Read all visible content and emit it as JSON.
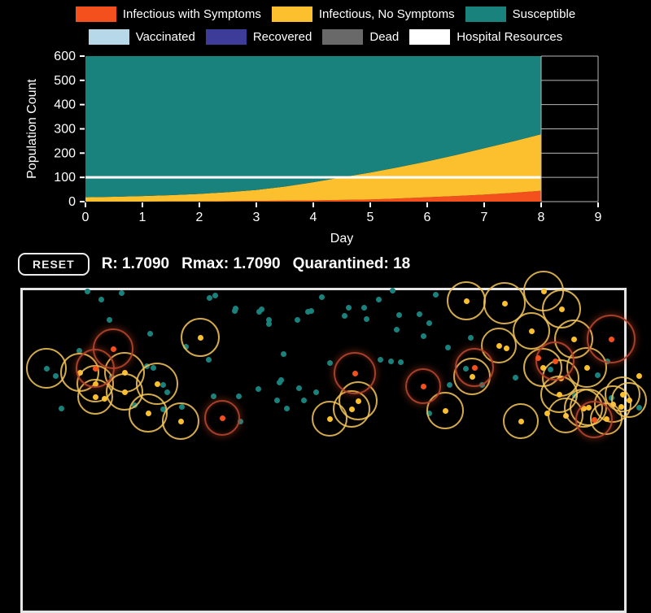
{
  "colors": {
    "infectious_symptoms": "#f4501e",
    "infectious_no_symptoms": "#fcc02e",
    "susceptible": "#1a827d",
    "vaccinated": "#b6d8e8",
    "recovered": "#3d3d99",
    "dead": "#696969",
    "hospital": "#ffffff",
    "ring_infectious": "rgba(247,200,88,0.85)",
    "ring_symptomatic": "rgba(176,66,44,0.95)",
    "grid": "#b7b7b7",
    "axis_text": "#ffffff"
  },
  "legend": {
    "rows": [
      [
        {
          "label": "Infectious with Symptoms",
          "color": "infectious_symptoms"
        },
        {
          "label": "Infectious, No Symptoms",
          "color": "infectious_no_symptoms"
        },
        {
          "label": "Susceptible",
          "color": "susceptible"
        }
      ],
      [
        {
          "label": "Vaccinated",
          "color": "vaccinated"
        },
        {
          "label": "Recovered",
          "color": "recovered"
        },
        {
          "label": "Dead",
          "color": "dead"
        },
        {
          "label": "Hospital Resources",
          "color": "hospital"
        }
      ]
    ]
  },
  "chart_data": {
    "type": "area",
    "stacked": true,
    "title": "",
    "xlabel": "Day",
    "ylabel": "Population Count",
    "xlim": [
      0,
      9
    ],
    "ylim": [
      0,
      600
    ],
    "xticks": [
      0,
      1,
      2,
      3,
      4,
      5,
      6,
      7,
      8,
      9
    ],
    "yticks": [
      0,
      100,
      200,
      300,
      400,
      500,
      600
    ],
    "x": [
      0,
      0.5,
      1,
      1.5,
      2,
      2.5,
      3,
      3.5,
      4,
      4.5,
      5,
      5.5,
      6,
      6.5,
      7,
      7.5,
      8
    ],
    "series": [
      {
        "name": "Infectious with Symptoms",
        "color": "infectious_symptoms",
        "values": [
          0,
          0,
          0,
          1,
          1,
          2,
          3,
          4,
          5,
          7,
          9,
          13,
          18,
          23,
          29,
          36,
          45
        ]
      },
      {
        "name": "Infectious, No Symptoms",
        "color": "infectious_no_symptoms",
        "values": [
          18,
          20,
          23,
          26,
          31,
          37,
          45,
          58,
          75,
          93,
          111,
          129,
          148,
          169,
          191,
          212,
          233
        ]
      },
      {
        "name": "Susceptible",
        "color": "susceptible",
        "values": [
          582,
          580,
          577,
          573,
          568,
          561,
          552,
          538,
          520,
          500,
          480,
          458,
          434,
          408,
          380,
          352,
          322
        ]
      }
    ],
    "hospital_resources_line": {
      "value": 100,
      "color": "hospital",
      "x_end": 8
    },
    "empty_grid": {
      "from_day": 8,
      "to_day": 9
    },
    "legend_position": "top",
    "grid": false
  },
  "controls": {
    "reset_label": "RESET",
    "stats": [
      "R: 1.7090",
      "Rmax: 1.7090",
      "Quarantined: 18"
    ]
  },
  "sim": {
    "dots_format": "[x, y, type(s=susceptible,i=infectious-no-symptoms,r=infectious-with-symptoms), ringRadius]",
    "dots": [
      [
        107,
        358,
        "s",
        0
      ],
      [
        124,
        368,
        "s",
        0
      ],
      [
        149,
        360,
        "s",
        0
      ],
      [
        257,
        366,
        "s",
        0
      ],
      [
        264,
        363,
        "s",
        0
      ],
      [
        289,
        379,
        "s",
        0
      ],
      [
        321,
        380,
        "s",
        0
      ],
      [
        382,
        382,
        "s",
        0
      ],
      [
        134,
        393,
        "s",
        0
      ],
      [
        330,
        398,
        "s",
        0
      ],
      [
        184,
        410,
        "s",
        0
      ],
      [
        228,
        426,
        "s",
        0
      ],
      [
        97,
        431,
        "s",
        0
      ],
      [
        57,
        453,
        "s",
        25
      ],
      [
        68,
        462,
        "s",
        0
      ],
      [
        75,
        502,
        "s",
        0
      ],
      [
        165,
        498,
        "s",
        0
      ],
      [
        200,
        503,
        "s",
        0
      ],
      [
        137,
        463,
        "s",
        0
      ],
      [
        180,
        450,
        "s",
        0
      ],
      [
        200,
        473,
        "s",
        0
      ],
      [
        256,
        442,
        "s",
        0
      ],
      [
        262,
        487,
        "s",
        0
      ],
      [
        345,
        467,
        "s",
        0
      ],
      [
        317,
        478,
        "s",
        0
      ],
      [
        367,
        477,
        "s",
        0
      ],
      [
        352,
        502,
        "s",
        0
      ],
      [
        373,
        492,
        "s",
        0
      ],
      [
        388,
        482,
        "s",
        0
      ],
      [
        188,
        452,
        "s",
        0
      ],
      [
        205,
        482,
        "s",
        0
      ],
      [
        223,
        500,
        "s",
        0
      ],
      [
        293,
        487,
        "s",
        0
      ],
      [
        340,
        492,
        "s",
        0
      ],
      [
        343,
        470,
        "s",
        0
      ],
      [
        295,
        518,
        "s",
        0
      ],
      [
        288,
        382,
        "s",
        0
      ],
      [
        318,
        383,
        "s",
        0
      ],
      [
        330,
        393,
        "s",
        0
      ],
      [
        365,
        393,
        "s",
        0
      ],
      [
        378,
        383,
        "s",
        0
      ],
      [
        395,
        365,
        "s",
        0
      ],
      [
        423,
        388,
        "s",
        0
      ],
      [
        447,
        378,
        "s",
        0
      ],
      [
        450,
        392,
        "s",
        0
      ],
      [
        465,
        368,
        "s",
        0
      ],
      [
        482,
        357,
        "s",
        0
      ],
      [
        487,
        405,
        "s",
        0
      ],
      [
        490,
        387,
        "s",
        0
      ],
      [
        515,
        386,
        "s",
        0
      ],
      [
        520,
        413,
        "s",
        0
      ],
      [
        527,
        397,
        "s",
        0
      ],
      [
        535,
        362,
        "s",
        0
      ],
      [
        428,
        378,
        "s",
        0
      ],
      [
        550,
        427,
        "s",
        0
      ],
      [
        578,
        415,
        "s",
        0
      ],
      [
        552,
        473,
        "s",
        0
      ],
      [
        633,
        464,
        "s",
        0
      ],
      [
        405,
        446,
        "s",
        0
      ],
      [
        480,
        444,
        "s",
        0
      ],
      [
        492,
        445,
        "s",
        0
      ],
      [
        572,
        453,
        "s",
        0
      ],
      [
        592,
        473,
        "s",
        0
      ],
      [
        527,
        508,
        "s",
        0
      ],
      [
        676,
        454,
        "s",
        0
      ],
      [
        734,
        461,
        "s",
        0
      ],
      [
        746,
        444,
        "s",
        0
      ],
      [
        706,
        486,
        "s",
        0
      ],
      [
        751,
        489,
        "s",
        0
      ],
      [
        785,
        501,
        "s",
        0
      ],
      [
        467,
        442,
        "s",
        0
      ],
      [
        348,
        435,
        "s",
        0
      ],
      [
        98,
        458,
        "i",
        24
      ],
      [
        117,
        472,
        "i",
        23
      ],
      [
        117,
        488,
        "i",
        22
      ],
      [
        128,
        490,
        "i",
        0
      ],
      [
        153,
        458,
        "i",
        25
      ],
      [
        153,
        482,
        "i",
        23
      ],
      [
        193,
        472,
        "i",
        26
      ],
      [
        182,
        508,
        "i",
        24
      ],
      [
        246,
        415,
        "i",
        24
      ],
      [
        222,
        518,
        "i",
        23
      ],
      [
        440,
        493,
        "i",
        24
      ],
      [
        432,
        503,
        "i",
        23
      ],
      [
        405,
        515,
        "i",
        22
      ],
      [
        547,
        505,
        "i",
        23
      ],
      [
        573,
        370,
        "i",
        24
      ],
      [
        620,
        373,
        "i",
        26
      ],
      [
        668,
        358,
        "i",
        25
      ],
      [
        690,
        380,
        "i",
        24
      ],
      [
        653,
        407,
        "i",
        23
      ],
      [
        705,
        417,
        "i",
        24
      ],
      [
        613,
        425,
        "i",
        22
      ],
      [
        622,
        428,
        "i",
        0
      ],
      [
        580,
        463,
        "i",
        23
      ],
      [
        667,
        452,
        "i",
        24
      ],
      [
        689,
        465,
        "i",
        23
      ],
      [
        721,
        452,
        "i",
        25
      ],
      [
        765,
        485,
        "i",
        22
      ],
      [
        723,
        501,
        "i",
        23
      ],
      [
        695,
        511,
        "i",
        22
      ],
      [
        672,
        508,
        "i",
        0
      ],
      [
        753,
        497,
        "i",
        23
      ],
      [
        763,
        500,
        "i",
        0
      ],
      [
        773,
        492,
        "i",
        22
      ],
      [
        785,
        462,
        "i",
        0
      ],
      [
        687,
        485,
        "i",
        23
      ],
      [
        717,
        502,
        "i",
        24
      ],
      [
        745,
        515,
        "i",
        20
      ],
      [
        640,
        518,
        "i",
        22
      ],
      [
        139,
        429,
        "r",
        25
      ],
      [
        117,
        453,
        "r",
        24
      ],
      [
        436,
        459,
        "r",
        26
      ],
      [
        583,
        452,
        "r",
        24
      ],
      [
        520,
        475,
        "r",
        22
      ],
      [
        751,
        417,
        "r",
        30
      ],
      [
        682,
        444,
        "r",
        24
      ],
      [
        661,
        440,
        "r",
        0
      ],
      [
        730,
        516,
        "r",
        23
      ],
      [
        273,
        514,
        "r",
        22
      ]
    ]
  }
}
